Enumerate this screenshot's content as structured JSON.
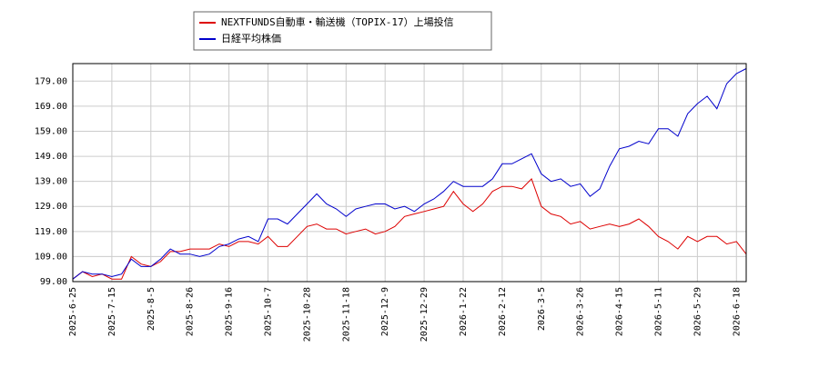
{
  "chart_data": {
    "type": "line",
    "categories": [
      "2025-6-25",
      null,
      null,
      null,
      "2025-7-15",
      null,
      null,
      null,
      "2025-8-5",
      null,
      null,
      null,
      "2025-8-26",
      null,
      null,
      null,
      "2025-9-16",
      null,
      null,
      null,
      "2025-10-7",
      null,
      null,
      null,
      "2025-10-28",
      null,
      null,
      null,
      "2025-11-18",
      null,
      null,
      null,
      "2025-12-9",
      null,
      null,
      null,
      "2025-12-29",
      null,
      null,
      null,
      "2026-1-22",
      null,
      null,
      null,
      "2026-2-12",
      null,
      null,
      null,
      "2026-3-5",
      null,
      null,
      null,
      "2026-3-26",
      null,
      null,
      null,
      "2026-4-15",
      null,
      null,
      null,
      "2026-5-11",
      null,
      null,
      null,
      "2026-5-29",
      null,
      null,
      null,
      "2026-6-18",
      null
    ],
    "series": [
      {
        "name": "NEXTFUNDS自動車・輸送機（TOPIX-17）上場投信",
        "color": "#dd0000",
        "values": [
          100,
          103,
          101,
          102,
          100,
          100,
          109,
          106,
          105,
          107,
          111,
          111,
          112,
          112,
          112,
          114,
          113,
          115,
          115,
          114,
          117,
          113,
          113,
          117,
          121,
          122,
          120,
          120,
          118,
          119,
          120,
          118,
          119,
          121,
          125,
          126,
          127,
          128,
          129,
          135,
          130,
          127,
          130,
          135,
          137,
          137,
          136,
          140,
          129,
          126,
          125,
          122,
          123,
          120,
          121,
          122,
          121,
          122,
          124,
          121,
          117,
          115,
          112,
          117,
          115,
          117,
          117,
          114,
          115,
          110
        ]
      },
      {
        "name": "日経平均株価",
        "color": "#0000cc",
        "values": [
          100,
          103,
          102,
          102,
          101,
          102,
          108,
          105,
          105,
          108,
          112,
          110,
          110,
          109,
          110,
          113,
          114,
          116,
          117,
          115,
          124,
          124,
          122,
          126,
          130,
          134,
          130,
          128,
          125,
          128,
          129,
          130,
          130,
          128,
          129,
          127,
          130,
          132,
          135,
          139,
          137,
          137,
          137,
          140,
          146,
          146,
          148,
          150,
          142,
          139,
          140,
          137,
          138,
          133,
          136,
          145,
          152,
          153,
          155,
          154,
          160,
          160,
          157,
          166,
          170,
          173,
          168,
          178,
          182,
          184
        ]
      }
    ],
    "ylim": [
      99,
      186
    ],
    "yticks": [
      {
        "value": 99,
        "label": "99.00"
      },
      {
        "value": 109,
        "label": "109.00"
      },
      {
        "value": 119,
        "label": "119.00"
      },
      {
        "value": 129,
        "label": "129.00"
      },
      {
        "value": 139,
        "label": "139.00"
      },
      {
        "value": 149,
        "label": "149.00"
      },
      {
        "value": 159,
        "label": "159.00"
      },
      {
        "value": 169,
        "label": "169.00"
      },
      {
        "value": 179,
        "label": "179.00"
      }
    ],
    "grid": true
  }
}
